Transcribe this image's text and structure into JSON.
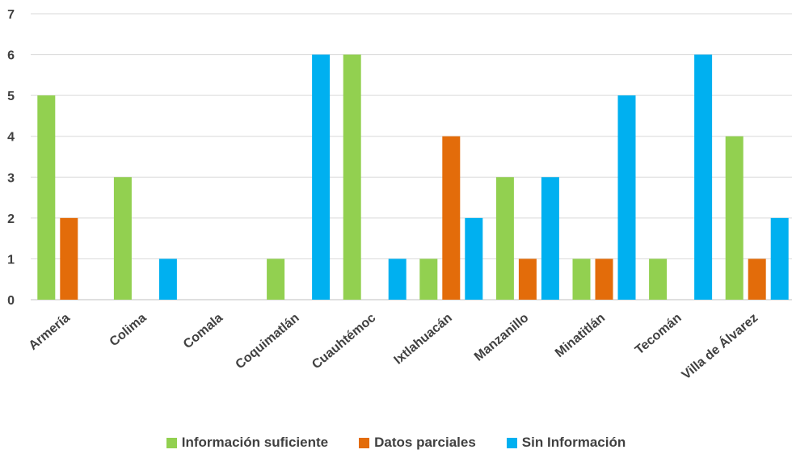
{
  "chart_data": {
    "type": "bar",
    "title": "",
    "xlabel": "",
    "ylabel": "",
    "ylim": [
      0,
      7
    ],
    "yticks": [
      0,
      1,
      2,
      3,
      4,
      5,
      6,
      7
    ],
    "grid": true,
    "legend_position": "bottom",
    "categories": [
      "Armería",
      "Colima",
      "Comala",
      "Coquimatlán",
      "Cuauhtémoc",
      "Ixtlahuacán",
      "Manzanillo",
      "Minatitlán",
      "Tecomán",
      "Villa de Álvarez"
    ],
    "series": [
      {
        "name": "Información suficiente",
        "color": "#92d050",
        "values": [
          5,
          3,
          0,
          1,
          6,
          1,
          3,
          1,
          1,
          4
        ]
      },
      {
        "name": "Datos parciales",
        "color": "#e36c0a",
        "values": [
          2,
          0,
          0,
          0,
          0,
          4,
          1,
          1,
          0,
          1
        ]
      },
      {
        "name": "Sin Información",
        "color": "#00b0f0",
        "values": [
          0,
          1,
          0,
          6,
          1,
          2,
          3,
          5,
          6,
          2
        ]
      }
    ]
  }
}
